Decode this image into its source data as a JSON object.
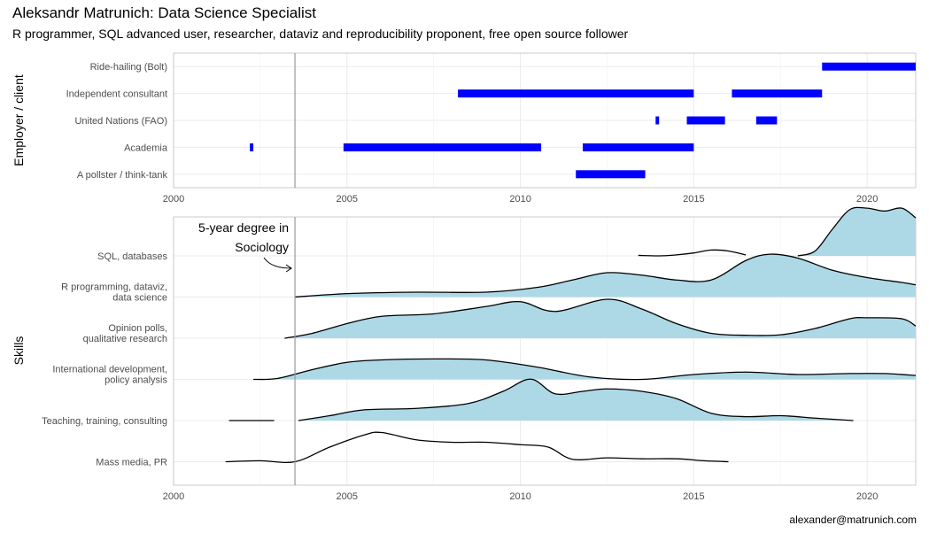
{
  "title": "Aleksandr Matrunich: Data Science Specialist",
  "subtitle": "R programmer, SQL advanced user, researcher, dataviz and reproducibility proponent, free open source follower",
  "caption": "alexander@matrunich.com",
  "chart_data": [
    {
      "type": "bar",
      "subtype": "timeline",
      "ylabel": "Employer / client",
      "xlabel": "",
      "xlim": [
        2000,
        2021.4
      ],
      "x_ticks": [
        2000,
        2005,
        2010,
        2015,
        2020
      ],
      "vline": 2003.5,
      "grid": true,
      "color": "#0000ff",
      "categories": [
        "Ride-hailing (Bolt)",
        "Independent consultant",
        "United Nations (FAO)",
        "Academia",
        "A pollster / think-tank"
      ],
      "segments": [
        {
          "category": "Ride-hailing (Bolt)",
          "start": 2018.7,
          "end": 2021.4
        },
        {
          "category": "Independent consultant",
          "start": 2008.2,
          "end": 2015.0
        },
        {
          "category": "Independent consultant",
          "start": 2016.1,
          "end": 2018.7
        },
        {
          "category": "United Nations (FAO)",
          "start": 2013.9,
          "end": 2014.0
        },
        {
          "category": "United Nations (FAO)",
          "start": 2014.8,
          "end": 2015.9
        },
        {
          "category": "United Nations (FAO)",
          "start": 2016.8,
          "end": 2017.4
        },
        {
          "category": "Academia",
          "start": 2002.2,
          "end": 2002.3
        },
        {
          "category": "Academia",
          "start": 2004.9,
          "end": 2010.6
        },
        {
          "category": "Academia",
          "start": 2011.8,
          "end": 2015.0
        },
        {
          "category": "A pollster / think-tank",
          "start": 2011.6,
          "end": 2013.6
        }
      ]
    },
    {
      "type": "area",
      "subtype": "ridgeline",
      "ylabel": "Skills",
      "xlabel": "",
      "xlim": [
        2000,
        2021.4
      ],
      "x_ticks": [
        2000,
        2005,
        2010,
        2015,
        2020
      ],
      "vline": 2003.5,
      "grid": true,
      "fill": "#add8e6",
      "annotation": {
        "lines": [
          "5-year degree in",
          "Sociology"
        ],
        "points_to": 2003.5
      },
      "ridges": [
        {
          "label": [
            "SQL, databases"
          ],
          "x_fill": [
            2018.0,
            2021.4
          ],
          "points": [
            [
              2013.4,
              0.01
            ],
            [
              2014.0,
              0.0
            ],
            [
              2014.5,
              0.02
            ],
            [
              2015.0,
              0.06
            ],
            [
              2015.5,
              0.12
            ],
            [
              2016.0,
              0.1
            ],
            [
              2016.5,
              0.02
            ],
            [
              null,
              null
            ],
            [
              2018.0,
              0.0
            ],
            [
              2018.5,
              0.1
            ],
            [
              2019.0,
              0.55
            ],
            [
              2019.5,
              0.95
            ],
            [
              2020.0,
              0.98
            ],
            [
              2020.5,
              0.92
            ],
            [
              2021.0,
              0.98
            ],
            [
              2021.4,
              0.78
            ]
          ]
        },
        {
          "label": [
            "R programming, dataviz,",
            "data science"
          ],
          "x_fill": [
            2003.5,
            2021.4
          ],
          "points": [
            [
              2003.5,
              0.0
            ],
            [
              2005.0,
              0.07
            ],
            [
              2007.0,
              0.1
            ],
            [
              2009.0,
              0.1
            ],
            [
              2010.5,
              0.2
            ],
            [
              2011.5,
              0.35
            ],
            [
              2012.5,
              0.5
            ],
            [
              2013.5,
              0.45
            ],
            [
              2014.5,
              0.35
            ],
            [
              2015.5,
              0.35
            ],
            [
              2016.5,
              0.75
            ],
            [
              2017.2,
              0.88
            ],
            [
              2018.0,
              0.8
            ],
            [
              2019.0,
              0.55
            ],
            [
              2020.0,
              0.4
            ],
            [
              2021.0,
              0.3
            ],
            [
              2021.4,
              0.25
            ]
          ]
        },
        {
          "label": [
            "Opinion polls,",
            "qualitative research"
          ],
          "x_fill": [
            2003.2,
            2021.4
          ],
          "points": [
            [
              2003.2,
              0.0
            ],
            [
              2004.0,
              0.1
            ],
            [
              2005.0,
              0.3
            ],
            [
              2006.0,
              0.45
            ],
            [
              2007.5,
              0.5
            ],
            [
              2009.0,
              0.65
            ],
            [
              2010.0,
              0.75
            ],
            [
              2011.0,
              0.55
            ],
            [
              2012.5,
              0.8
            ],
            [
              2013.5,
              0.6
            ],
            [
              2014.5,
              0.3
            ],
            [
              2015.5,
              0.1
            ],
            [
              2016.5,
              0.06
            ],
            [
              2017.5,
              0.07
            ],
            [
              2018.5,
              0.2
            ],
            [
              2019.5,
              0.4
            ],
            [
              2020.0,
              0.42
            ],
            [
              2021.0,
              0.4
            ],
            [
              2021.4,
              0.25
            ]
          ]
        },
        {
          "label": [
            "International development,",
            "policy analysis"
          ],
          "x_fill": [
            2002.3,
            2021.4
          ],
          "points": [
            [
              2002.3,
              0.0
            ],
            [
              2003.0,
              0.02
            ],
            [
              2004.0,
              0.2
            ],
            [
              2005.0,
              0.35
            ],
            [
              2006.0,
              0.4
            ],
            [
              2007.5,
              0.42
            ],
            [
              2009.0,
              0.4
            ],
            [
              2010.5,
              0.25
            ],
            [
              2012.0,
              0.05
            ],
            [
              2013.5,
              0.0
            ],
            [
              2015.0,
              0.1
            ],
            [
              2016.5,
              0.15
            ],
            [
              2018.0,
              0.1
            ],
            [
              2019.5,
              0.12
            ],
            [
              2020.5,
              0.12
            ],
            [
              2021.4,
              0.08
            ]
          ]
        },
        {
          "label": [
            "Teaching, training, consulting"
          ],
          "x_fill": [
            2003.6,
            2019.6
          ],
          "points": [
            [
              2001.6,
              0.0
            ],
            [
              2002.9,
              0.0
            ],
            [
              null,
              null
            ],
            [
              2003.6,
              0.0
            ],
            [
              2004.5,
              0.1
            ],
            [
              2005.5,
              0.22
            ],
            [
              2007.0,
              0.25
            ],
            [
              2008.5,
              0.35
            ],
            [
              2009.5,
              0.6
            ],
            [
              2010.3,
              0.85
            ],
            [
              2011.0,
              0.55
            ],
            [
              2011.8,
              0.6
            ],
            [
              2012.5,
              0.65
            ],
            [
              2013.5,
              0.6
            ],
            [
              2014.5,
              0.45
            ],
            [
              2015.5,
              0.15
            ],
            [
              2016.5,
              0.08
            ],
            [
              2017.5,
              0.1
            ],
            [
              2018.5,
              0.05
            ],
            [
              2019.6,
              0.0
            ]
          ]
        },
        {
          "label": [
            "Mass media, PR"
          ],
          "x_fill": [
            2003.5,
            2016.0
          ],
          "points": [
            [
              2001.5,
              0.0
            ],
            [
              2002.5,
              0.02
            ],
            [
              2003.5,
              0.0
            ],
            [
              2004.5,
              0.3
            ],
            [
              2005.5,
              0.55
            ],
            [
              2006.0,
              0.6
            ],
            [
              2007.0,
              0.45
            ],
            [
              2008.0,
              0.4
            ],
            [
              2009.0,
              0.4
            ],
            [
              2010.0,
              0.35
            ],
            [
              2010.8,
              0.3
            ],
            [
              2011.5,
              0.05
            ],
            [
              2012.5,
              0.08
            ],
            [
              2013.5,
              0.06
            ],
            [
              2014.5,
              0.06
            ],
            [
              2015.3,
              0.02
            ],
            [
              2016.0,
              0.0
            ]
          ]
        }
      ]
    }
  ]
}
